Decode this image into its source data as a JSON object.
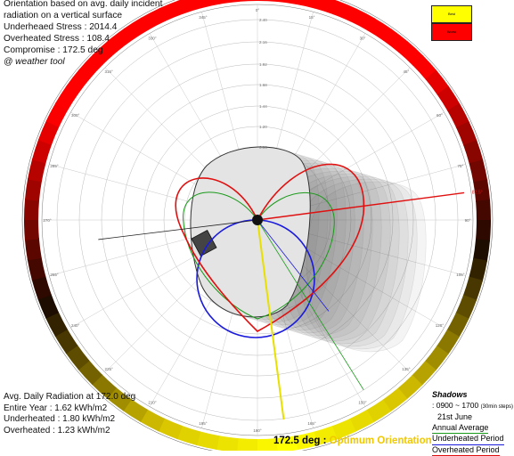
{
  "top_left_lines": [
    "Orientation based on avg. daily incident",
    "radiation on a vertical surface",
    "Underheaed Stress : 2014.4",
    "Overheated Stress : 108.4",
    "Compromise : 172.5 deg",
    "@ weather tool"
  ],
  "bottom_left_lines": [
    "Avg. Daily Radiation at 172.0 deg",
    "Entire Year : 1.62 kWh/m2",
    "Underheated : 1.80 kWh/m2",
    "Overheated : 1.23 kWh/m2"
  ],
  "legend": {
    "best_label": "Best",
    "worst_label": "Worst",
    "best_color": "#ffff00",
    "worst_color": "#ff0000"
  },
  "optimum": {
    "value": "172.5 deg",
    "separator": ":",
    "label": "Optimum Orientation"
  },
  "shadows": {
    "title": "Shadows",
    "time": ": 0900 ~ 1700",
    "step": "(30min steps)",
    "date": "21st June"
  },
  "series_legend": [
    {
      "label": "Annual Average",
      "color": "#1a9a1a"
    },
    {
      "label": "Underheated Period",
      "color": "#1a1adc"
    },
    {
      "label": "Overheated Period",
      "color": "#e01010"
    }
  ],
  "angle_labels": [
    "345°",
    "0°",
    "15°",
    "30°",
    "45°",
    "60°",
    "75°",
    "90°",
    "105°",
    "120°",
    "135°",
    "150°",
    "165°",
    "180°",
    "195°",
    "210°",
    "225°",
    "240°",
    "255°",
    "270°",
    "285°",
    "300°",
    "315°",
    "330°"
  ],
  "ring_labels": [
    "2.40",
    "2.16",
    "1.92",
    "1.68",
    "1.44",
    "1.20",
    "0.96"
  ],
  "highlight_angle_label": "82.5°"
}
